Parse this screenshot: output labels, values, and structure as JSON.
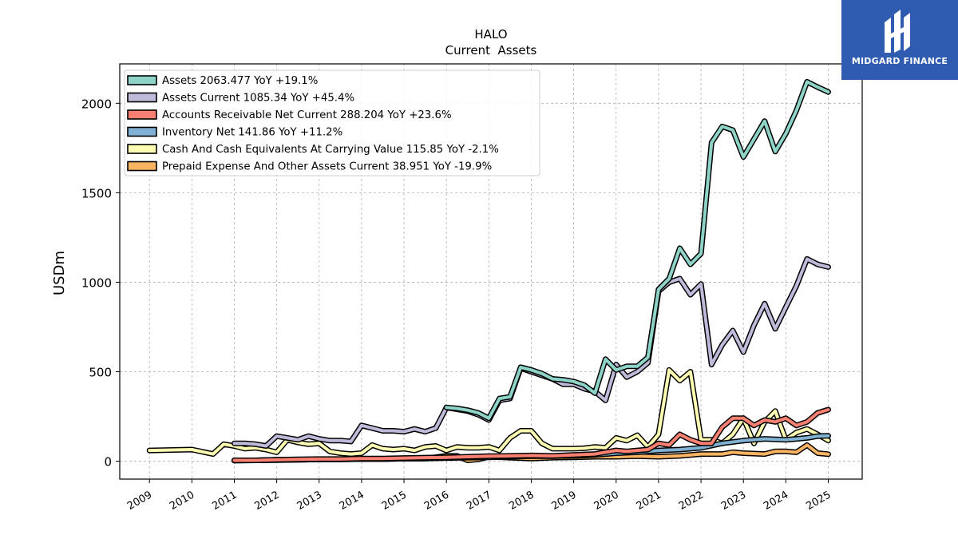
{
  "brand": {
    "name": "MIDGARD FINANCE",
    "icon": "midgard-logo-icon",
    "color": "#2f5bb0"
  },
  "chart_data": {
    "type": "line",
    "title": "HALO",
    "subtitle": "Current  Assets",
    "ylabel": "USDm",
    "xlabel": "",
    "xlim": [
      2008.3,
      2025.8
    ],
    "ylim": [
      -100,
      2220
    ],
    "yticks": [
      0,
      500,
      1000,
      1500,
      2000
    ],
    "xticks": [
      2009,
      2010,
      2011,
      2012,
      2013,
      2014,
      2015,
      2016,
      2017,
      2018,
      2019,
      2020,
      2021,
      2022,
      2023,
      2024,
      2025
    ],
    "grid": true,
    "legend_position": "top-left",
    "series": [
      {
        "name": "Assets",
        "legend": "Assets  2063.477 YoY +19.1%",
        "color": "#8dd3c7",
        "x": [
          2016.0,
          2016.25,
          2016.5,
          2016.75,
          2017.0,
          2017.25,
          2017.5,
          2017.75,
          2018.0,
          2018.25,
          2018.5,
          2018.75,
          2019.0,
          2019.25,
          2019.5,
          2019.75,
          2020.0,
          2020.25,
          2020.5,
          2020.75,
          2021.0,
          2021.25,
          2021.5,
          2021.75,
          2022.0,
          2022.25,
          2022.5,
          2022.75,
          2023.0,
          2023.25,
          2023.5,
          2023.75,
          2024.0,
          2024.25,
          2024.5,
          2024.75,
          2025.0
        ],
        "y": [
          300,
          295,
          285,
          270,
          240,
          350,
          360,
          525,
          510,
          490,
          460,
          455,
          445,
          425,
          380,
          570,
          510,
          530,
          530,
          580,
          960,
          1020,
          1190,
          1100,
          1160,
          1780,
          1870,
          1850,
          1700,
          1800,
          1900,
          1730,
          1830,
          1960,
          2120,
          2090,
          2063
        ]
      },
      {
        "name": "Assets Current",
        "legend": "Assets Current  1085.34 YoY +45.4%",
        "color": "#bebada",
        "x": [
          2011.0,
          2011.25,
          2011.5,
          2011.75,
          2012.0,
          2012.25,
          2012.5,
          2012.75,
          2013.0,
          2013.25,
          2013.5,
          2013.75,
          2014.0,
          2014.25,
          2014.5,
          2014.75,
          2015.0,
          2015.25,
          2015.5,
          2015.75,
          2016.0,
          2016.25,
          2016.5,
          2016.75,
          2017.0,
          2017.25,
          2017.5,
          2017.75,
          2018.0,
          2018.25,
          2018.5,
          2018.75,
          2019.0,
          2019.25,
          2019.5,
          2019.75,
          2020.0,
          2020.25,
          2020.5,
          2020.75,
          2021.0,
          2021.25,
          2021.5,
          2021.75,
          2022.0,
          2022.25,
          2022.5,
          2022.75,
          2023.0,
          2023.25,
          2023.5,
          2023.75,
          2024.0,
          2024.25,
          2024.5,
          2024.75,
          2025.0
        ],
        "y": [
          100,
          100,
          95,
          85,
          140,
          130,
          120,
          140,
          125,
          115,
          115,
          110,
          200,
          185,
          170,
          170,
          165,
          180,
          165,
          185,
          300,
          290,
          280,
          260,
          230,
          340,
          350,
          520,
          500,
          480,
          460,
          430,
          430,
          405,
          390,
          340,
          540,
          470,
          500,
          550,
          950,
          1000,
          1020,
          930,
          990,
          540,
          650,
          730,
          610,
          760,
          880,
          740,
          860,
          980,
          1130,
          1100,
          1085
        ]
      },
      {
        "name": "Accounts Receivable Net Current",
        "legend": "Accounts Receivable Net Current  288.204 YoY +23.6%",
        "color": "#fb8072",
        "x": [
          2011.0,
          2011.5,
          2012.0,
          2012.5,
          2013.0,
          2013.5,
          2014.0,
          2014.5,
          2015.0,
          2015.5,
          2016.0,
          2016.5,
          2017.0,
          2017.5,
          2018.0,
          2018.5,
          2019.0,
          2019.5,
          2020.0,
          2020.25,
          2020.5,
          2020.75,
          2021.0,
          2021.25,
          2021.5,
          2021.75,
          2022.0,
          2022.25,
          2022.5,
          2022.75,
          2023.0,
          2023.25,
          2023.5,
          2023.75,
          2024.0,
          2024.25,
          2024.5,
          2024.75,
          2025.0
        ],
        "y": [
          5,
          5,
          8,
          10,
          12,
          12,
          15,
          15,
          18,
          20,
          22,
          25,
          28,
          30,
          32,
          30,
          35,
          40,
          60,
          55,
          60,
          65,
          100,
          90,
          150,
          120,
          100,
          100,
          190,
          240,
          240,
          200,
          230,
          220,
          240,
          200,
          220,
          270,
          288
        ]
      },
      {
        "name": "Inventory Net",
        "legend": "Inventory Net  141.86 YoY +11.2%",
        "color": "#80b1d3",
        "x": [
          2011.0,
          2011.5,
          2012.0,
          2012.5,
          2013.0,
          2013.5,
          2014.0,
          2014.5,
          2015.0,
          2015.5,
          2016.0,
          2016.5,
          2017.0,
          2017.5,
          2018.0,
          2018.5,
          2019.0,
          2019.5,
          2020.0,
          2020.5,
          2021.0,
          2021.5,
          2022.0,
          2022.5,
          2023.0,
          2023.5,
          2024.0,
          2024.25,
          2024.5,
          2024.75,
          2025.0
        ],
        "y": [
          5,
          5,
          8,
          8,
          10,
          10,
          12,
          12,
          14,
          15,
          18,
          20,
          22,
          25,
          28,
          28,
          30,
          35,
          45,
          50,
          60,
          65,
          75,
          100,
          115,
          125,
          120,
          125,
          130,
          140,
          142
        ]
      },
      {
        "name": "Cash And Cash Equivalents At Carrying Value",
        "legend": "Cash And Cash Equivalents At Carrying Value  115.85 YoY -2.1%",
        "color": "#ffffb3",
        "x": [
          2009.0,
          2010.0,
          2010.5,
          2010.75,
          2011.0,
          2011.25,
          2011.5,
          2011.75,
          2012.0,
          2012.25,
          2012.5,
          2012.75,
          2013.0,
          2013.25,
          2013.5,
          2013.75,
          2014.0,
          2014.25,
          2014.5,
          2014.75,
          2015.0,
          2015.25,
          2015.5,
          2015.75,
          2016.0,
          2016.25,
          2016.5,
          2016.75,
          2017.0,
          2017.25,
          2017.5,
          2017.75,
          2018.0,
          2018.25,
          2018.5,
          2018.75,
          2019.0,
          2019.25,
          2019.5,
          2019.75,
          2020.0,
          2020.25,
          2020.5,
          2020.75,
          2021.0,
          2021.25,
          2021.5,
          2021.75,
          2022.0,
          2022.25,
          2022.5,
          2022.75,
          2023.0,
          2023.25,
          2023.5,
          2023.75,
          2024.0,
          2024.25,
          2024.5,
          2024.75,
          2025.0
        ],
        "y": [
          60,
          65,
          40,
          95,
          85,
          70,
          75,
          65,
          50,
          120,
          105,
          95,
          100,
          55,
          45,
          40,
          45,
          90,
          70,
          65,
          70,
          60,
          80,
          85,
          60,
          80,
          75,
          75,
          80,
          60,
          130,
          170,
          170,
          100,
          70,
          70,
          70,
          72,
          80,
          75,
          130,
          115,
          145,
          80,
          150,
          510,
          450,
          500,
          120,
          120,
          100,
          150,
          240,
          100,
          220,
          280,
          120,
          160,
          180,
          150,
          116
        ]
      },
      {
        "name": "Prepaid Expense And Other Assets Current",
        "legend": "Prepaid Expense And Other Assets Current  38.951 YoY -19.9%",
        "color": "#fdb462",
        "x": [
          2011.0,
          2011.5,
          2012.0,
          2012.5,
          2013.0,
          2013.5,
          2014.0,
          2014.5,
          2015.0,
          2015.5,
          2016.0,
          2016.25,
          2016.5,
          2016.75,
          2017.0,
          2017.5,
          2018.0,
          2018.5,
          2019.0,
          2019.5,
          2020.0,
          2020.5,
          2021.0,
          2021.5,
          2022.0,
          2022.5,
          2022.75,
          2023.0,
          2023.5,
          2023.75,
          2024.0,
          2024.25,
          2024.5,
          2024.75,
          2025.0
        ],
        "y": [
          3,
          5,
          6,
          8,
          10,
          10,
          12,
          12,
          14,
          15,
          30,
          30,
          5,
          10,
          25,
          20,
          15,
          20,
          22,
          25,
          25,
          28,
          25,
          30,
          40,
          40,
          50,
          45,
          40,
          55,
          55,
          50,
          90,
          45,
          39
        ]
      }
    ]
  }
}
